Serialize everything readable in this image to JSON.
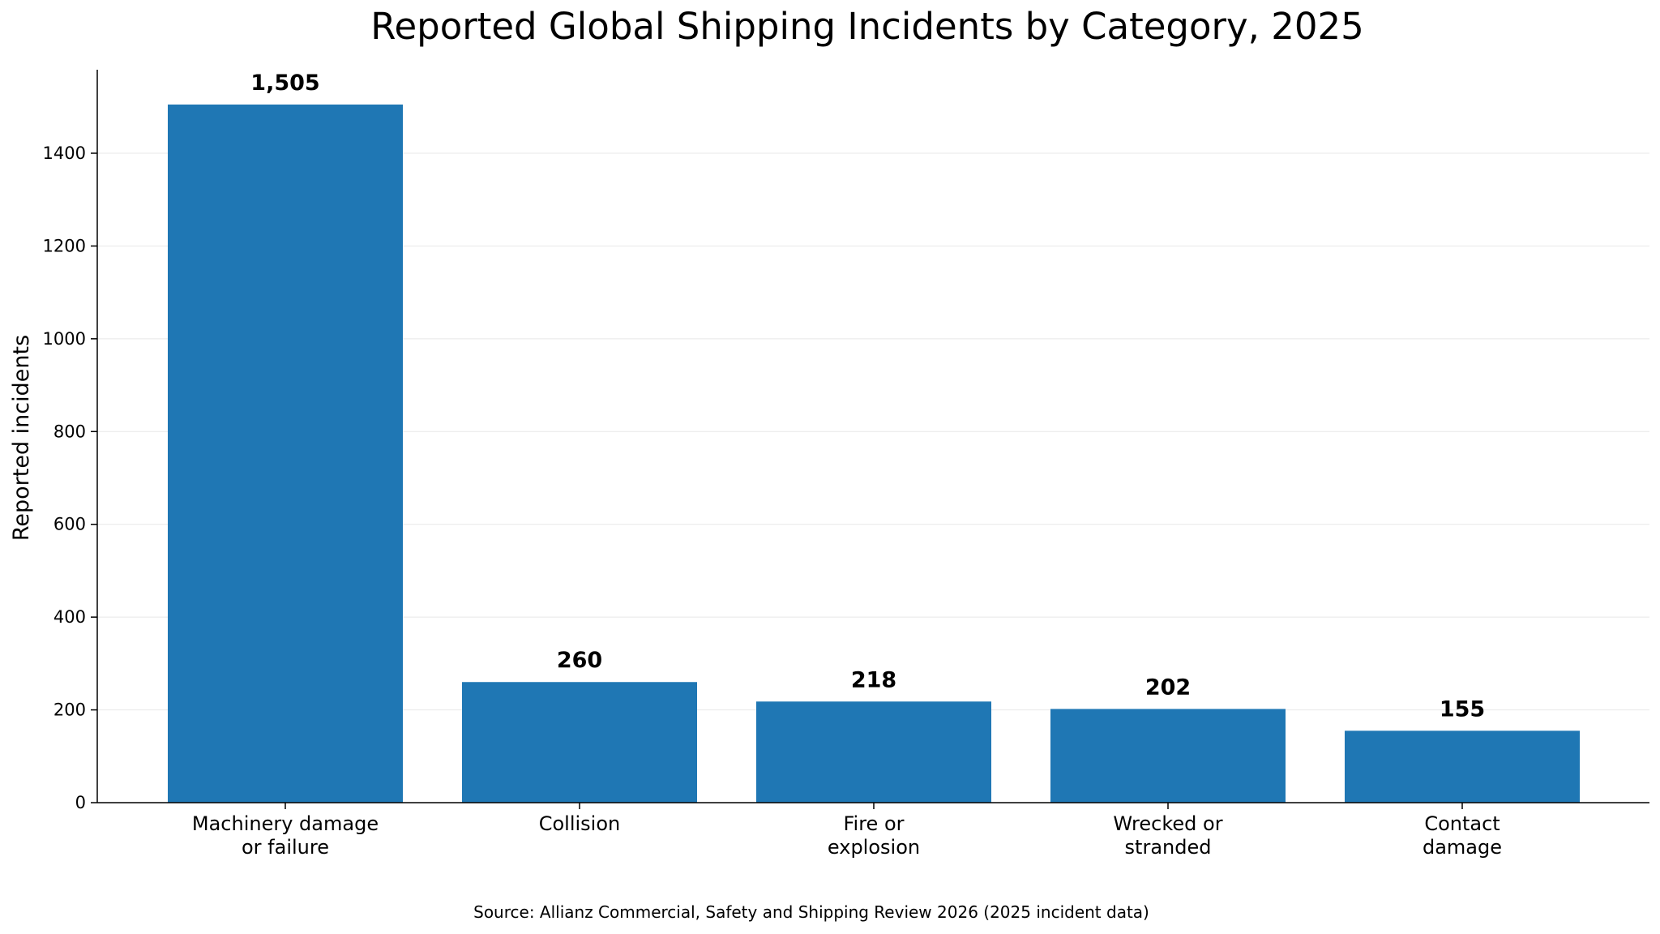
{
  "chart_data": {
    "type": "bar",
    "title": "Reported Global Shipping Incidents by Category, 2025",
    "ylabel": "Reported incidents",
    "xlabel": "",
    "categories": [
      [
        "Machinery damage",
        "or failure"
      ],
      [
        "Collision"
      ],
      [
        "Fire or",
        "explosion"
      ],
      [
        "Wrecked or",
        "stranded"
      ],
      [
        "Contact",
        "damage"
      ]
    ],
    "values": [
      1505,
      260,
      218,
      202,
      155
    ],
    "value_labels": [
      "1,505",
      "260",
      "218",
      "202",
      "155"
    ],
    "ylim": [
      0,
      1580
    ],
    "yticks": [
      0,
      200,
      400,
      600,
      800,
      1000,
      1200,
      1400
    ],
    "ytick_labels": [
      "0",
      "200",
      "400",
      "600",
      "800",
      "1000",
      "1200",
      "1400"
    ],
    "grid": "horizontal",
    "bar_color": "#1f77b4",
    "source": "Source: Allianz Commercial, Safety and Shipping Review 2026 (2025 incident data)"
  }
}
